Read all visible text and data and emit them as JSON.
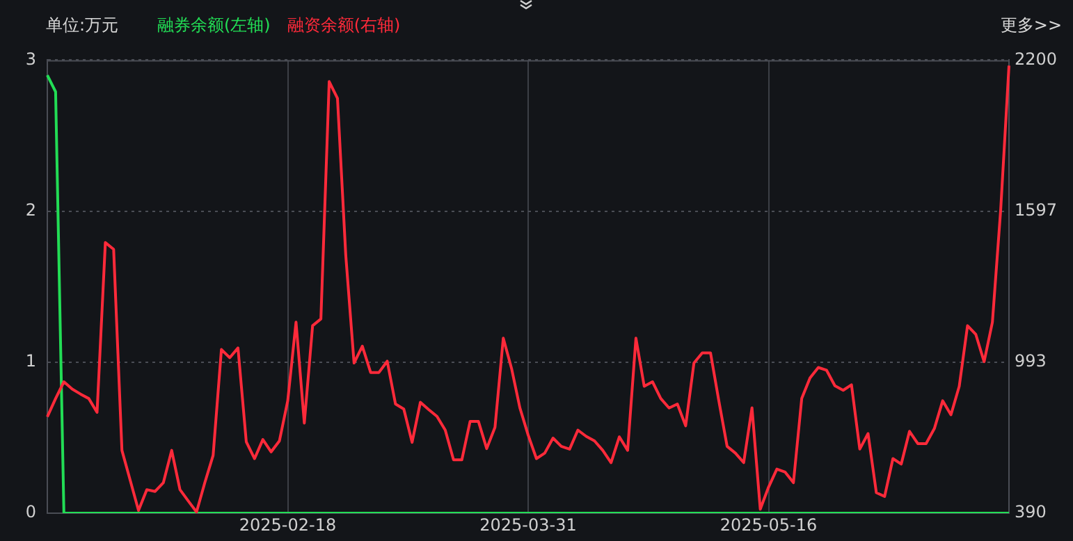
{
  "chart_data": {
    "type": "line",
    "categories": [
      null,
      null,
      null,
      null,
      null,
      null,
      null,
      null,
      null,
      null,
      null,
      null,
      null,
      null,
      null,
      null,
      null,
      null,
      null,
      null,
      null,
      null,
      null,
      null,
      null,
      null,
      null,
      null,
      null,
      "2025-02-18",
      null,
      null,
      null,
      null,
      null,
      null,
      null,
      null,
      null,
      null,
      null,
      null,
      null,
      null,
      null,
      null,
      null,
      null,
      null,
      null,
      null,
      null,
      null,
      null,
      null,
      null,
      null,
      null,
      "2025-03-31",
      null,
      null,
      null,
      null,
      null,
      null,
      null,
      null,
      null,
      null,
      null,
      null,
      null,
      null,
      null,
      null,
      null,
      null,
      null,
      null,
      null,
      null,
      null,
      null,
      null,
      null,
      null,
      null,
      "2025-05-16",
      null,
      null,
      null,
      null,
      null,
      null,
      null,
      null,
      null,
      null,
      null,
      null,
      null,
      null,
      null,
      null,
      null,
      null,
      null,
      null,
      null,
      null,
      null,
      null,
      null,
      null,
      null,
      null,
      null
    ],
    "series": [
      {
        "name": "融券余额(左轴)",
        "color": "#22dd55",
        "axis": "y",
        "values": [
          2.9,
          2.79,
          0,
          0,
          0,
          0,
          0,
          0,
          0,
          0,
          0,
          0,
          0,
          0,
          0,
          0,
          0,
          0,
          0,
          0,
          0,
          0,
          0,
          0,
          0,
          0,
          0,
          0,
          0,
          0,
          0,
          0,
          0,
          0,
          0,
          0,
          0,
          0,
          0,
          0,
          0,
          0,
          0,
          0,
          0,
          0,
          0,
          0,
          0,
          0,
          0,
          0,
          0,
          0,
          0,
          0,
          0,
          0,
          0,
          0,
          0,
          0,
          0,
          0,
          0,
          0,
          0,
          0,
          0,
          0,
          0,
          0,
          0,
          0,
          0,
          0,
          0,
          0,
          0,
          0,
          0,
          0,
          0,
          0,
          0,
          0,
          0,
          0,
          0,
          0,
          0,
          0,
          0,
          0,
          0,
          0,
          0,
          0,
          0,
          0,
          0,
          0,
          0,
          0,
          0,
          0,
          0,
          0,
          0,
          0,
          0,
          0,
          0,
          0,
          0,
          0,
          0
        ]
      },
      {
        "name": "融资余额(右轴)",
        "color": "#ff2a3a",
        "axis": "y2",
        "values": [
          775,
          848,
          915,
          886,
          866,
          848,
          793,
          1471,
          1444,
          641,
          521,
          401,
          484,
          477,
          512,
          641,
          484,
          439,
          395,
          512,
          621,
          1044,
          1011,
          1050,
          675,
          608,
          684,
          635,
          679,
          839,
          1153,
          750,
          1139,
          1166,
          2114,
          2047,
          1420,
          990,
          1057,
          952,
          952,
          997,
          826,
          806,
          673,
          833,
          804,
          777,
          722,
          603,
          603,
          757,
          757,
          648,
          733,
          1089,
          968,
          811,
          702,
          608,
          630,
          690,
          657,
          646,
          722,
          697,
          679,
          641,
          592,
          695,
          641,
          1089,
          897,
          915,
          848,
          810,
          826,
          739,
          990,
          1030,
          1030,
          839,
          657,
          630,
          592,
          811,
          406,
          494,
          566,
          554,
          512,
          848,
          930,
          972,
          961,
          899,
          881,
          903,
          646,
          708,
          472,
          457,
          608,
          586,
          717,
          668,
          668,
          728,
          839,
          783,
          897,
          1139,
          1104,
          995,
          1153,
          1602,
          2178
        ]
      }
    ],
    "ylim": [
      0,
      3
    ],
    "yticks": [
      0,
      1,
      2,
      3
    ],
    "y2lim": [
      390,
      2200
    ],
    "y2ticks": [
      390,
      993,
      1597,
      2200
    ],
    "grid": true,
    "legend": "top left",
    "marker": "none",
    "annotations": [
      "单位:万元",
      "更多>>"
    ]
  }
}
